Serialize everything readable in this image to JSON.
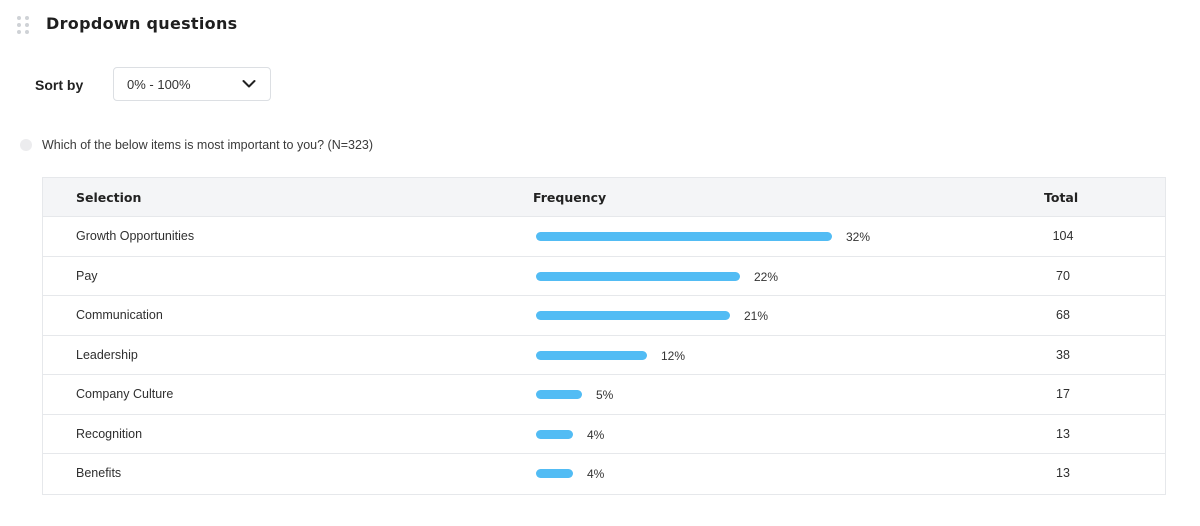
{
  "section": {
    "title": "Dropdown questions"
  },
  "sort": {
    "label": "Sort by",
    "selected": "0% - 100%"
  },
  "question": {
    "text": "Which of the below items is most important to you? (N=323)"
  },
  "table": {
    "headers": {
      "selection": "Selection",
      "frequency": "Frequency",
      "total": "Total"
    },
    "bar_color": "#52bcf4",
    "max_percent": 32,
    "rows": [
      {
        "selection": "Growth Opportunities",
        "percent": 32,
        "percent_label": "32%",
        "total": "104"
      },
      {
        "selection": "Pay",
        "percent": 22,
        "percent_label": "22%",
        "total": "70"
      },
      {
        "selection": "Communication",
        "percent": 21,
        "percent_label": "21%",
        "total": "68"
      },
      {
        "selection": "Leadership",
        "percent": 12,
        "percent_label": "12%",
        "total": "38"
      },
      {
        "selection": "Company Culture",
        "percent": 5,
        "percent_label": "5%",
        "total": "17"
      },
      {
        "selection": "Recognition",
        "percent": 4,
        "percent_label": "4%",
        "total": "13"
      },
      {
        "selection": "Benefits",
        "percent": 4,
        "percent_label": "4%",
        "total": "13"
      }
    ]
  }
}
